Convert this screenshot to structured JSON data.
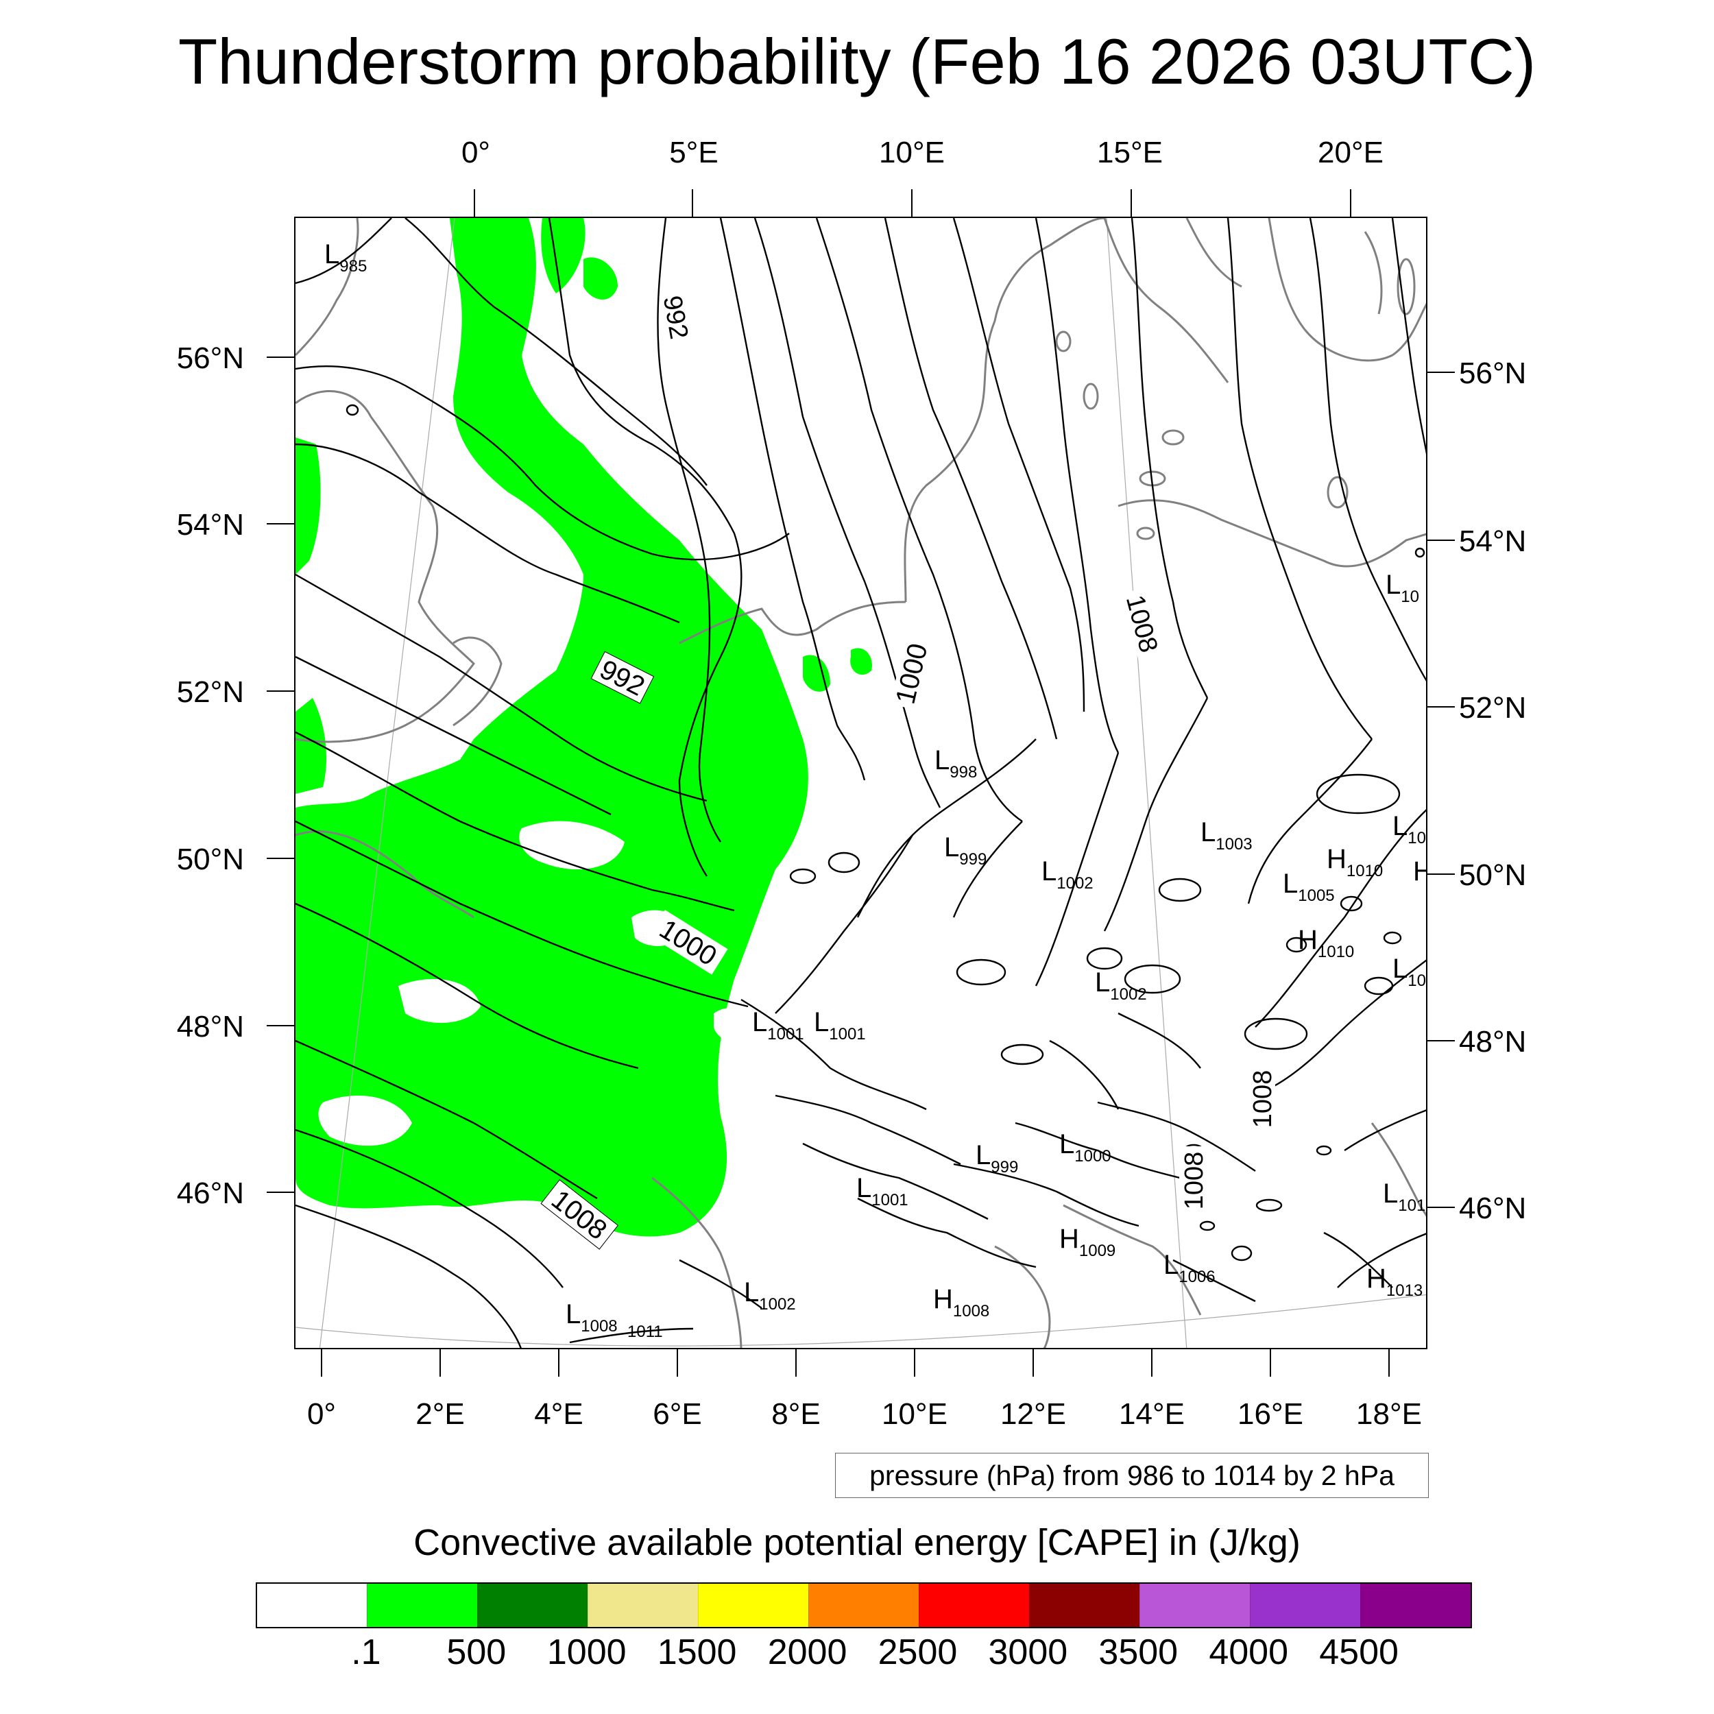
{
  "title": "Thunderstorm probability (Feb 16 2026 03UTC)",
  "top_axis_labels": [
    "0°",
    "5°E",
    "10°E",
    "15°E",
    "20°E"
  ],
  "bottom_axis_labels": [
    "0°",
    "2°E",
    "4°E",
    "6°E",
    "8°E",
    "10°E",
    "12°E",
    "14°E",
    "16°E",
    "18°E"
  ],
  "left_axis_labels": [
    "56°N",
    "54°N",
    "52°N",
    "50°N",
    "48°N",
    "46°N"
  ],
  "right_axis_labels": [
    "56°N",
    "54°N",
    "52°N",
    "50°N",
    "48°N",
    "46°N"
  ],
  "pressure_legend": "pressure (hPa) from 986 to 1014 by 2 hPa",
  "cape_title": "Convective available potential energy [CAPE] in (J/kg)",
  "colorbar": {
    "colors": [
      "#ffffff",
      "#00ff00",
      "#008000",
      "#f0e68c",
      "#ffff00",
      "#ff8000",
      "#ff0000",
      "#8b0000",
      "#b856d7",
      "#9932cc",
      "#8b008b"
    ],
    "ticks": [
      ".1",
      "500",
      "1000",
      "1500",
      "2000",
      "2500",
      "3000",
      "3500",
      "4000",
      "4500"
    ]
  },
  "isobar_labels": [
    "992",
    "992",
    "1000",
    "1000",
    "1008",
    "1008",
    "1008",
    "1008"
  ],
  "pressure_centers": [
    {
      "type": "L",
      "value": "985"
    },
    {
      "type": "L",
      "value": "998"
    },
    {
      "type": "L",
      "value": "999"
    },
    {
      "type": "L",
      "value": "1002"
    },
    {
      "type": "L",
      "value": "1003"
    },
    {
      "type": "H",
      "value": "1010"
    },
    {
      "type": "L",
      "value": "1005"
    },
    {
      "type": "H",
      "value": "1010"
    },
    {
      "type": "L",
      "value": "10"
    },
    {
      "type": "L",
      "value": "1002"
    },
    {
      "type": "L",
      "value": "1001"
    },
    {
      "type": "L",
      "value": "1001"
    },
    {
      "type": "L",
      "value": "999"
    },
    {
      "type": "L",
      "value": "1000"
    },
    {
      "type": "L",
      "value": "1001"
    },
    {
      "type": "H",
      "value": "1009"
    },
    {
      "type": "L",
      "value": "1006"
    },
    {
      "type": "H",
      "value": "1008"
    },
    {
      "type": "L",
      "value": "1002"
    },
    {
      "type": "L",
      "value": "1008"
    },
    {
      "type": "H",
      "value": "1013"
    },
    {
      "type": "L",
      "value": "101"
    },
    {
      "type": "L",
      "value": "10"
    },
    {
      "type": "L",
      "value": "10"
    },
    {
      "type": "H",
      "value": ""
    }
  ],
  "extra_labels": [
    "1011"
  ]
}
